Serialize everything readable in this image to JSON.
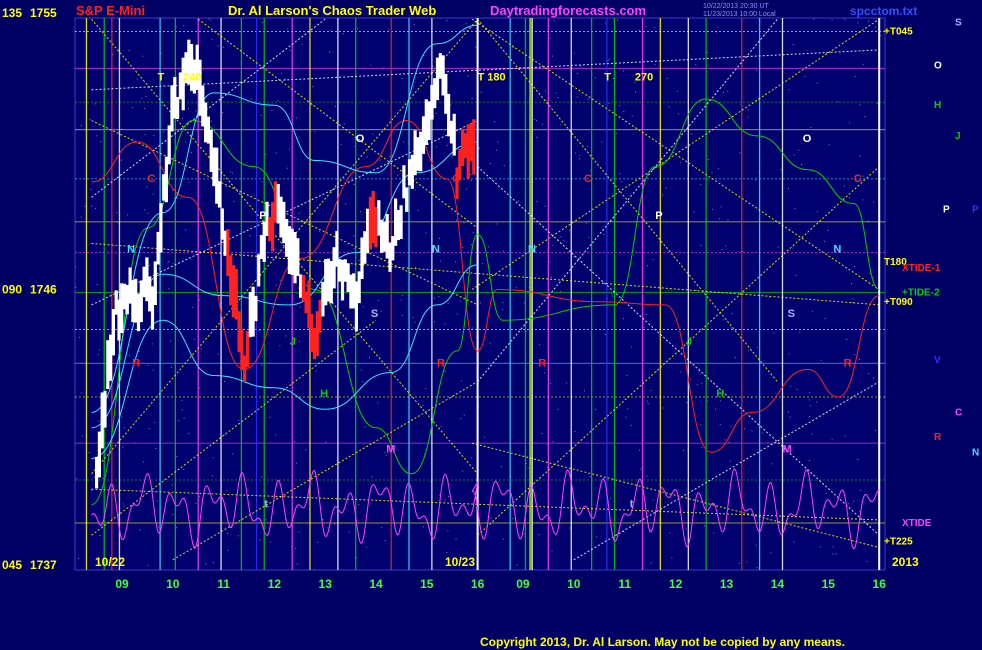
{
  "header": {
    "instrument": "S&P E-Mini",
    "title": "Dr. Al Larson's Chaos Trader Web",
    "site": "Daytradingforecasts.com",
    "timestamp": "10/22/2013 20:30 UT",
    "subline": "11/23/2013 10:00 Local",
    "file": "spcctom.txt"
  },
  "footer": {
    "copyright": "Copyright 2013, Dr. Al Larson. May not be copied by any means."
  },
  "colors": {
    "background": "#000064",
    "plot_bg": "#00006e",
    "axis_text": "#ffff00",
    "yellow": "#ffff00",
    "green": "#00d000",
    "cyan": "#40e0ff",
    "red": "#ff2020",
    "magenta": "#ff40ff",
    "white": "#ffffff",
    "blue": "#3030ff"
  },
  "chart_data": {
    "type": "line",
    "xlabel": "",
    "ylabel": "",
    "price_range": [
      1737,
      1755
    ],
    "y_axis_labels": [
      {
        "deg": "135",
        "price": "1755",
        "value": 1755
      },
      {
        "deg": "090",
        "price": "1746",
        "value": 1746
      },
      {
        "deg": "045",
        "price": "1737",
        "value": 1737
      }
    ],
    "x_range": [
      8.4,
      40
    ],
    "day_labels": [
      {
        "label": "10/22",
        "x": 9
      },
      {
        "label": "10/23",
        "x": 32
      },
      {
        "label": "2013",
        "x": 40
      }
    ],
    "hour_ticks": [
      {
        "label": "09",
        "x": 9
      },
      {
        "label": "10",
        "x": 10
      },
      {
        "label": "11",
        "x": 11
      },
      {
        "label": "12",
        "x": 12
      },
      {
        "label": "13",
        "x": 13
      },
      {
        "label": "14",
        "x": 14
      },
      {
        "label": "15",
        "x": 15
      },
      {
        "label": "16",
        "x": 16
      },
      {
        "label": "09",
        "x": 33
      },
      {
        "label": "10",
        "x": 34
      },
      {
        "label": "11",
        "x": 35
      },
      {
        "label": "12",
        "x": 36
      },
      {
        "label": "13",
        "x": 37
      },
      {
        "label": "14",
        "x": 38
      },
      {
        "label": "15",
        "x": 39
      },
      {
        "label": "16",
        "x": 40
      }
    ],
    "labels_on_plot": [
      {
        "text": "T",
        "x": 9.7,
        "y": 1752.8,
        "color": "#ffff00"
      },
      {
        "text": "240",
        "x": 10.2,
        "y": 1752.8,
        "color": "#ffff00"
      },
      {
        "text": "T",
        "x": 16,
        "y": 1752.8,
        "color": "#ffff00"
      },
      {
        "text": "180",
        "x": 32.3,
        "y": 1752.8,
        "color": "#ffff00"
      },
      {
        "text": "T",
        "x": 34.6,
        "y": 1752.8,
        "color": "#ffff00"
      },
      {
        "text": "270",
        "x": 35.2,
        "y": 1752.8,
        "color": "#ffff00"
      },
      {
        "text": "C",
        "x": 9.5,
        "y": 1749.5,
        "color": "#ff2020"
      },
      {
        "text": "C",
        "x": 15.5,
        "y": 1749.5,
        "color": "#ff2020"
      },
      {
        "text": "C",
        "x": 34.2,
        "y": 1749.5,
        "color": "#ff2020"
      },
      {
        "text": "C",
        "x": 39.5,
        "y": 1749.5,
        "color": "#ff2020"
      },
      {
        "text": "N",
        "x": 9.1,
        "y": 1747.2,
        "color": "#40e0ff"
      },
      {
        "text": "N",
        "x": 15.1,
        "y": 1747.2,
        "color": "#40e0ff"
      },
      {
        "text": "N",
        "x": 33.1,
        "y": 1747.2,
        "color": "#40e0ff"
      },
      {
        "text": "N",
        "x": 39.1,
        "y": 1747.2,
        "color": "#40e0ff"
      },
      {
        "text": "O",
        "x": 13.6,
        "y": 1750.8,
        "color": "#ffffff"
      },
      {
        "text": "O",
        "x": 38.5,
        "y": 1750.8,
        "color": "#ffffff"
      },
      {
        "text": "P",
        "x": 11.7,
        "y": 1748.3,
        "color": "#ffffff"
      },
      {
        "text": "P",
        "x": 35.6,
        "y": 1748.3,
        "color": "#ffffff"
      },
      {
        "text": "S",
        "x": 13.9,
        "y": 1745.1,
        "color": "#b0b0ff"
      },
      {
        "text": "S",
        "x": 38.2,
        "y": 1745.1,
        "color": "#b0b0ff"
      },
      {
        "text": "J",
        "x": 12.3,
        "y": 1744.2,
        "color": "#00d000"
      },
      {
        "text": "J",
        "x": 36.2,
        "y": 1744.2,
        "color": "#00d000"
      },
      {
        "text": "R",
        "x": 9.2,
        "y": 1743.5,
        "color": "#ff2020"
      },
      {
        "text": "R",
        "x": 15.2,
        "y": 1743.5,
        "color": "#ff2020"
      },
      {
        "text": "R",
        "x": 33.3,
        "y": 1743.5,
        "color": "#ff2020"
      },
      {
        "text": "R",
        "x": 39.3,
        "y": 1743.5,
        "color": "#ff2020"
      },
      {
        "text": "H",
        "x": 12.9,
        "y": 1742.5,
        "color": "#00d000"
      },
      {
        "text": "H",
        "x": 36.8,
        "y": 1742.5,
        "color": "#00d000"
      },
      {
        "text": "M",
        "x": 14.2,
        "y": 1740.7,
        "color": "#ff40ff"
      },
      {
        "text": "M",
        "x": 38.1,
        "y": 1740.7,
        "color": "#ff40ff"
      },
      {
        "text": "t",
        "x": 11.8,
        "y": 1738.9,
        "color": "#b0b0ff"
      },
      {
        "text": "t",
        "x": 35.1,
        "y": 1738.9,
        "color": "#b0b0ff"
      }
    ],
    "right_labels": [
      {
        "text": "+T045",
        "y": 1754.3,
        "color": "#ffff00"
      },
      {
        "text": "S",
        "y": 1754.6,
        "color": "#b0b0ff",
        "col": 2
      },
      {
        "text": "O",
        "y": 1753.2,
        "color": "#ffffff",
        "col": 1
      },
      {
        "text": "H",
        "y": 1751.9,
        "color": "#00d000",
        "col": 1
      },
      {
        "text": "J",
        "y": 1750.9,
        "color": "#00d000",
        "col": 2
      },
      {
        "text": "P",
        "y": 1748.5,
        "color": "#ffffff",
        "col": 3
      },
      {
        "text": "P",
        "y": 1748.5,
        "color": "#3030ff",
        "col": 4
      },
      {
        "text": "T180",
        "y": 1746.8,
        "color": "#ffff00"
      },
      {
        "text": "XTIDE-1",
        "y": 1746.6,
        "color": "#ff2020"
      },
      {
        "text": "+TIDE-2",
        "y": 1745.8,
        "color": "#00d000"
      },
      {
        "text": "+T090",
        "y": 1745.5,
        "color": "#ffff00"
      },
      {
        "text": "V",
        "y": 1743.6,
        "color": "#3030ff",
        "col": 1
      },
      {
        "text": "C",
        "y": 1741.9,
        "color": "#ff40ff",
        "col": 2
      },
      {
        "text": "R",
        "y": 1741.1,
        "color": "#ff2020",
        "col": 1
      },
      {
        "text": "N",
        "y": 1740.6,
        "color": "#40e0ff",
        "col": 4
      },
      {
        "text": "XTIDE",
        "y": 1738.3,
        "color": "#ff40ff"
      },
      {
        "text": "+T225",
        "y": 1737.7,
        "color": "#ffff00"
      }
    ]
  }
}
